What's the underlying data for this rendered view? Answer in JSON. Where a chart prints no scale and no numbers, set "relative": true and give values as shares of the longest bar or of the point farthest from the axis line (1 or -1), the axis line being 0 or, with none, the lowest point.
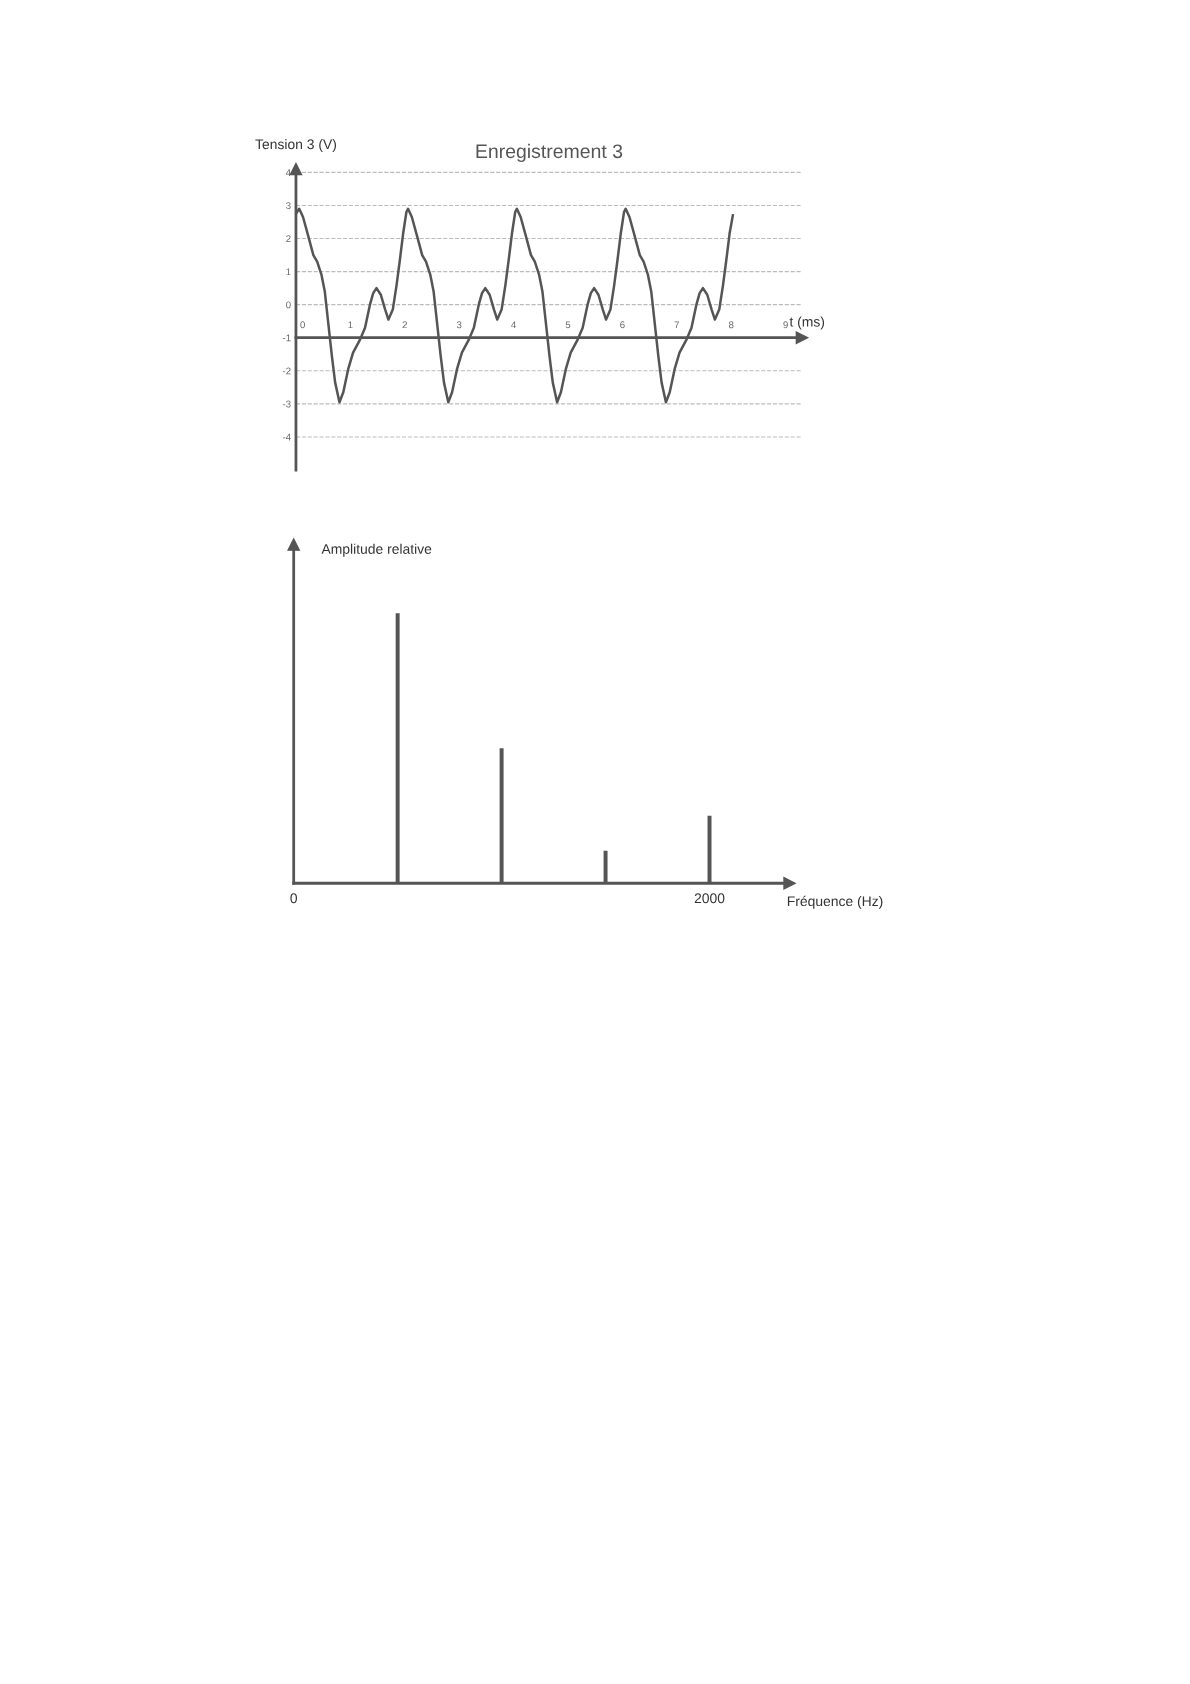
{
  "chart_data": [
    {
      "type": "line",
      "title": "Enregistrement 3",
      "ylabel": "Tension 3 (V)",
      "xlabel": "t (ms)",
      "color": "#555555",
      "x": [
        0,
        0.06,
        0.13,
        0.23,
        0.32,
        0.39,
        0.47,
        0.53,
        0.59,
        0.66,
        0.72,
        0.8,
        0.87,
        0.96,
        1.05,
        1.18,
        1.27,
        1.36,
        1.42,
        1.48,
        1.56,
        1.64,
        1.7,
        1.78,
        1.85,
        1.91,
        1.97,
        2.03,
        2.06,
        2.13,
        2.23,
        2.32,
        2.39,
        2.47,
        2.53,
        2.59,
        2.66,
        2.72,
        2.8,
        2.87,
        2.96,
        3.05,
        3.18,
        3.27,
        3.36,
        3.42,
        3.48,
        3.56,
        3.64,
        3.7,
        3.78,
        3.85,
        3.91,
        3.97,
        4.03,
        4.06,
        4.13,
        4.23,
        4.32,
        4.39,
        4.47,
        4.53,
        4.59,
        4.66,
        4.72,
        4.8,
        4.87,
        4.96,
        5.05,
        5.18,
        5.27,
        5.36,
        5.42,
        5.48,
        5.56,
        5.64,
        5.7,
        5.78,
        5.85,
        5.91,
        5.97,
        6.03,
        6.06,
        6.13,
        6.23,
        6.32,
        6.39,
        6.47,
        6.53,
        6.59,
        6.66,
        6.72,
        6.8,
        6.87,
        6.96,
        7.05,
        7.18,
        7.27,
        7.36,
        7.42,
        7.48,
        7.56,
        7.64,
        7.7,
        7.78,
        7.85,
        7.91,
        7.97,
        8.03
      ],
      "values": [
        2.75,
        2.9,
        2.65,
        2.05,
        1.5,
        1.3,
        0.9,
        0.4,
        -0.5,
        -1.55,
        -2.35,
        -2.95,
        -2.65,
        -1.95,
        -1.45,
        -1.05,
        -0.7,
        0,
        0.35,
        0.5,
        0.3,
        -0.15,
        -0.45,
        -0.15,
        0.6,
        1.35,
        2.15,
        2.8,
        2.9,
        2.65,
        2.05,
        1.5,
        1.3,
        0.9,
        0.4,
        -0.5,
        -1.55,
        -2.35,
        -2.95,
        -2.65,
        -1.95,
        -1.45,
        -1.05,
        -0.7,
        0,
        0.35,
        0.5,
        0.3,
        -0.15,
        -0.45,
        -0.15,
        0.6,
        1.35,
        2.15,
        2.8,
        2.9,
        2.65,
        2.05,
        1.5,
        1.3,
        0.9,
        0.4,
        -0.5,
        -1.55,
        -2.35,
        -2.95,
        -2.65,
        -1.95,
        -1.45,
        -1.05,
        -0.7,
        0,
        0.35,
        0.5,
        0.3,
        -0.15,
        -0.45,
        -0.15,
        0.6,
        1.35,
        2.15,
        2.8,
        2.9,
        2.65,
        2.05,
        1.5,
        1.3,
        0.9,
        0.4,
        -0.5,
        -1.55,
        -2.35,
        -2.95,
        -2.65,
        -1.95,
        -1.45,
        -1.05,
        -0.7,
        0,
        0.35,
        0.5,
        0.3,
        -0.15,
        -0.45,
        -0.15,
        0.6,
        1.35,
        2.15,
        2.7
      ],
      "xlim": [
        0,
        9.3
      ],
      "ylim": [
        -5,
        4.1
      ],
      "xticks": [
        0,
        1,
        2,
        3,
        4,
        5,
        6,
        7,
        8,
        9
      ],
      "yticks": [
        -4,
        -3,
        -2,
        -1,
        0,
        1,
        2,
        3,
        4
      ],
      "grid": "y"
    },
    {
      "type": "bar",
      "xlabel": "Fréquence (Hz)",
      "ylabel": "Amplitude relative",
      "color": "#555555",
      "x": [
        500,
        1000,
        1500,
        2000
      ],
      "values": [
        1,
        0.5,
        0.12,
        0.25
      ],
      "relative": true,
      "xlim": [
        0,
        2385
      ],
      "xticks": [
        0,
        2000
      ]
    }
  ]
}
